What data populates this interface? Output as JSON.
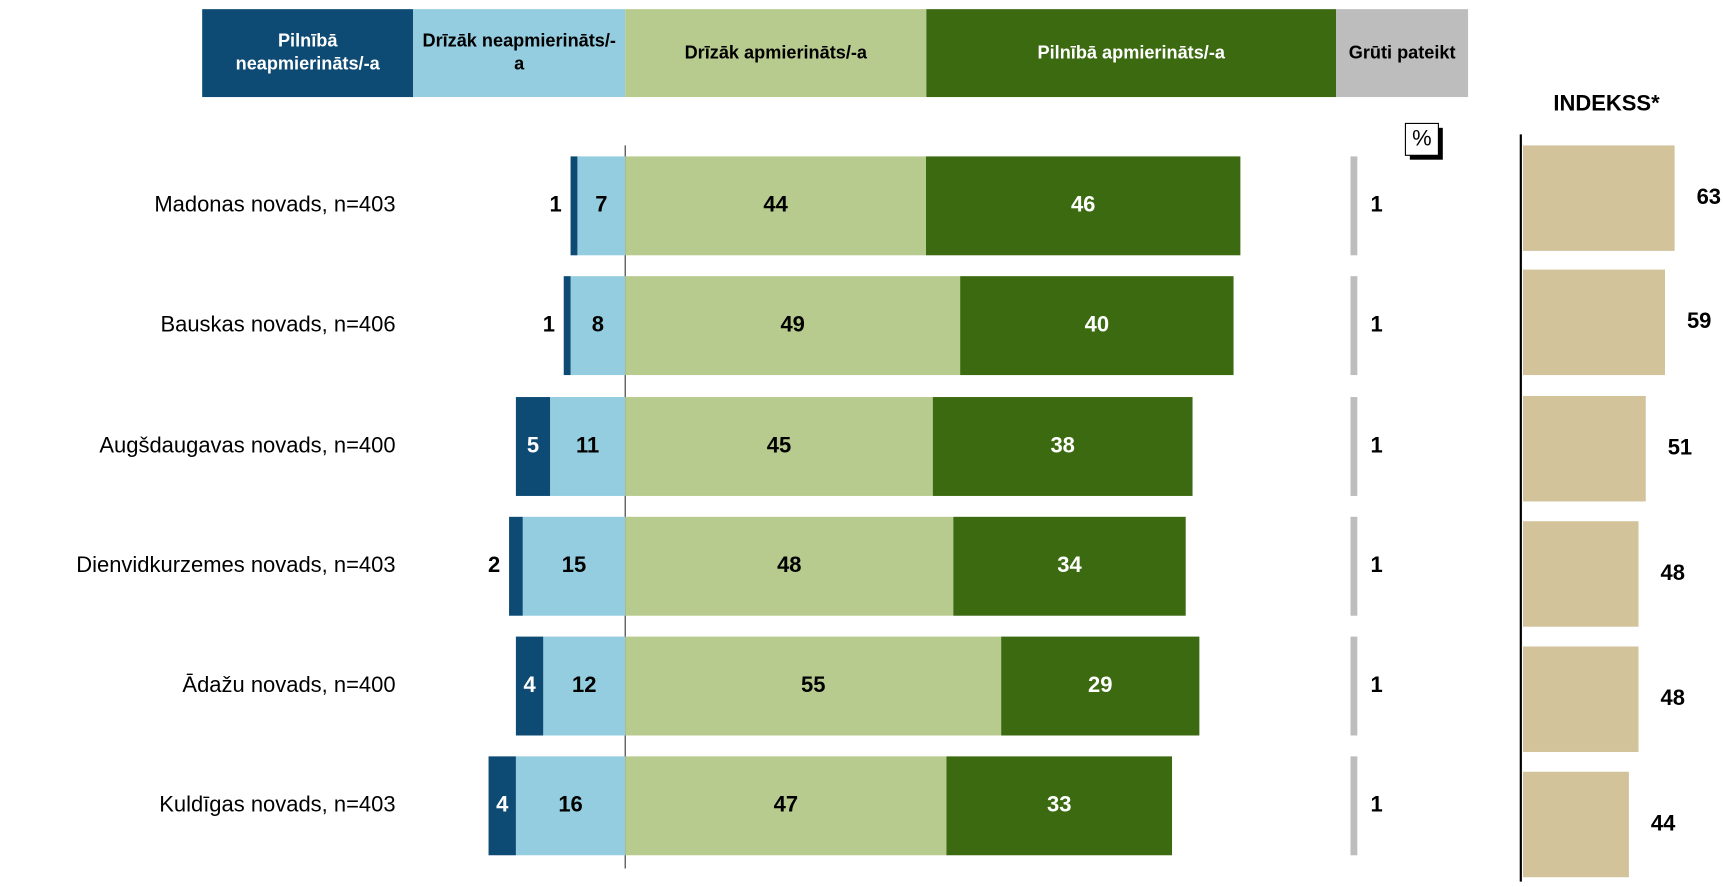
{
  "chart_data": {
    "type": "diverging_bar",
    "categories": [
      "Madonas novads, n=403",
      "Bauskas novads, n=406",
      "Augšdaugavas novads, n=400",
      "Dienvidkurzemes novads, n=403",
      "Ādažu novads, n=400",
      "Kuldīgas novads, n=403"
    ],
    "series": [
      {
        "name": "Pilnībā neapmierināts/-a",
        "color": "#0d4a74",
        "values": [
          1,
          1,
          5,
          2,
          4,
          4
        ]
      },
      {
        "name": "Drīzāk neapmierināts/-a",
        "color": "#93cddf",
        "values": [
          7,
          8,
          11,
          15,
          12,
          16
        ]
      },
      {
        "name": "Drīzāk apmierināts/-a",
        "color": "#b8cb8e",
        "values": [
          44,
          49,
          45,
          48,
          55,
          47
        ]
      },
      {
        "name": "Pilnībā apmierināts/-a",
        "color": "#3b6a10",
        "values": [
          46,
          40,
          38,
          34,
          29,
          33
        ]
      },
      {
        "name": "Grūti pateikt",
        "color": "#bdbdbd",
        "values": [
          1,
          1,
          1,
          1,
          1,
          1
        ]
      }
    ],
    "unit": "%",
    "index": {
      "title": "INDEKSS*",
      "color": "#d2c39b",
      "values": [
        63,
        59,
        51,
        48,
        48,
        44
      ]
    }
  }
}
